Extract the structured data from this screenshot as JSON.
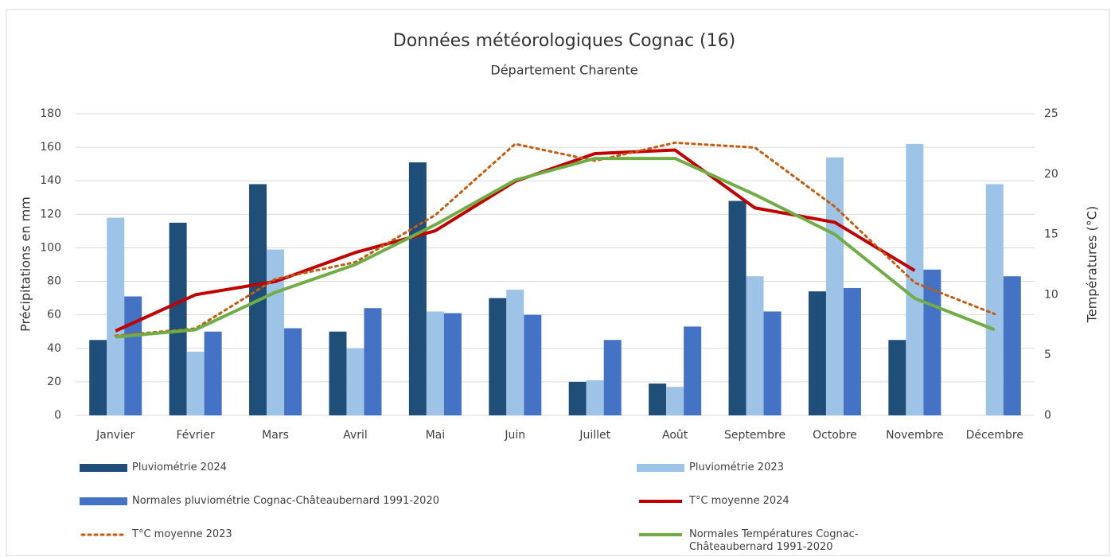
{
  "chart_data": {
    "type": "bar",
    "title": "Données météorologiques Cognac (16)",
    "subtitle": "Département Charente",
    "y_label": "Précipitations en mm",
    "y2_label": "Températures (°C)",
    "categories": [
      "Janvier",
      "Février",
      "Mars",
      "Avril",
      "Mai",
      "Juin",
      "Juillet",
      "Août",
      "Septembre",
      "Octobre",
      "Novembre",
      "Décembre"
    ],
    "ylim": [
      0,
      180
    ],
    "yticks": [
      0,
      20,
      40,
      60,
      80,
      100,
      120,
      140,
      160,
      180
    ],
    "y2lim": [
      0,
      25
    ],
    "y2ticks": [
      0,
      5,
      10,
      15,
      20,
      25
    ],
    "grid": true,
    "legend": "bottom",
    "series": [
      {
        "name": "Pluviométrie 2024",
        "type": "bar",
        "color": "#1f4e79",
        "values": [
          45,
          115,
          138,
          50,
          151,
          70,
          20,
          19,
          128,
          74,
          45,
          null
        ]
      },
      {
        "name": "Pluviométrie 2023",
        "type": "bar",
        "color": "#9dc3e6",
        "values": [
          118,
          38,
          99,
          40,
          62,
          75,
          21,
          17,
          83,
          154,
          162,
          138
        ]
      },
      {
        "name": "Normales pluviométrie Cognac-Châteaubernard 1991-2020",
        "type": "bar",
        "color": "#4472c4",
        "values": [
          71,
          50,
          52,
          64,
          61,
          60,
          45,
          53,
          62,
          76,
          87,
          83
        ]
      },
      {
        "name": "T°C moyenne 2024",
        "type": "line",
        "axis": "y2",
        "color": "#c00000",
        "values": [
          7.0,
          10.0,
          11.1,
          13.5,
          15.3,
          19.4,
          21.7,
          22.0,
          17.2,
          16.0,
          12.0,
          null
        ]
      },
      {
        "name": "T°C moyenne 2023",
        "type": "line",
        "axis": "y2",
        "dashed": true,
        "color": "#c55a11",
        "values": [
          6.6,
          7.2,
          11.3,
          12.7,
          16.6,
          22.5,
          21.1,
          22.6,
          22.2,
          17.3,
          11.0,
          8.4
        ]
      },
      {
        "name": "Normales Températures Cognac-Châteaubernard 1991-2020",
        "type": "line",
        "axis": "y2",
        "color": "#70ad47",
        "values": [
          6.5,
          7.1,
          10.2,
          12.5,
          15.8,
          19.5,
          21.3,
          21.3,
          18.3,
          15.0,
          9.7,
          7.1
        ]
      }
    ]
  }
}
